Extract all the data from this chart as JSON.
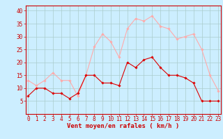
{
  "hours": [
    0,
    1,
    2,
    3,
    4,
    5,
    6,
    7,
    8,
    9,
    10,
    11,
    12,
    13,
    14,
    15,
    16,
    17,
    18,
    19,
    20,
    21,
    22,
    23
  ],
  "wind_avg": [
    7,
    10,
    10,
    8,
    8,
    6,
    8,
    15,
    15,
    12,
    12,
    11,
    20,
    18,
    21,
    22,
    18,
    15,
    15,
    14,
    12,
    5,
    5,
    5
  ],
  "wind_gust": [
    13,
    11,
    13,
    16,
    13,
    13,
    7,
    15,
    26,
    31,
    28,
    22,
    33,
    37,
    36,
    38,
    34,
    33,
    29,
    30,
    31,
    25,
    15,
    9
  ],
  "color_avg": "#dd0000",
  "color_gust": "#ffaaaa",
  "bg_color": "#cceeff",
  "grid_color": "#aacccc",
  "xlabel": "Vent moyen/en rafales ( km/h )",
  "ylim_min": 0,
  "ylim_max": 42,
  "yticks": [
    5,
    10,
    15,
    20,
    25,
    30,
    35,
    40
  ],
  "xticks": [
    0,
    1,
    2,
    3,
    4,
    5,
    6,
    7,
    8,
    9,
    10,
    11,
    12,
    13,
    14,
    15,
    16,
    17,
    18,
    19,
    20,
    21,
    22,
    23
  ],
  "marker": "D",
  "markersize": 1.8,
  "linewidth": 0.8,
  "xlabel_fontsize": 6.5,
  "tick_fontsize": 5.5,
  "tick_color": "#cc0000",
  "axis_color": "#cc0000",
  "spine_color": "#cc0000"
}
